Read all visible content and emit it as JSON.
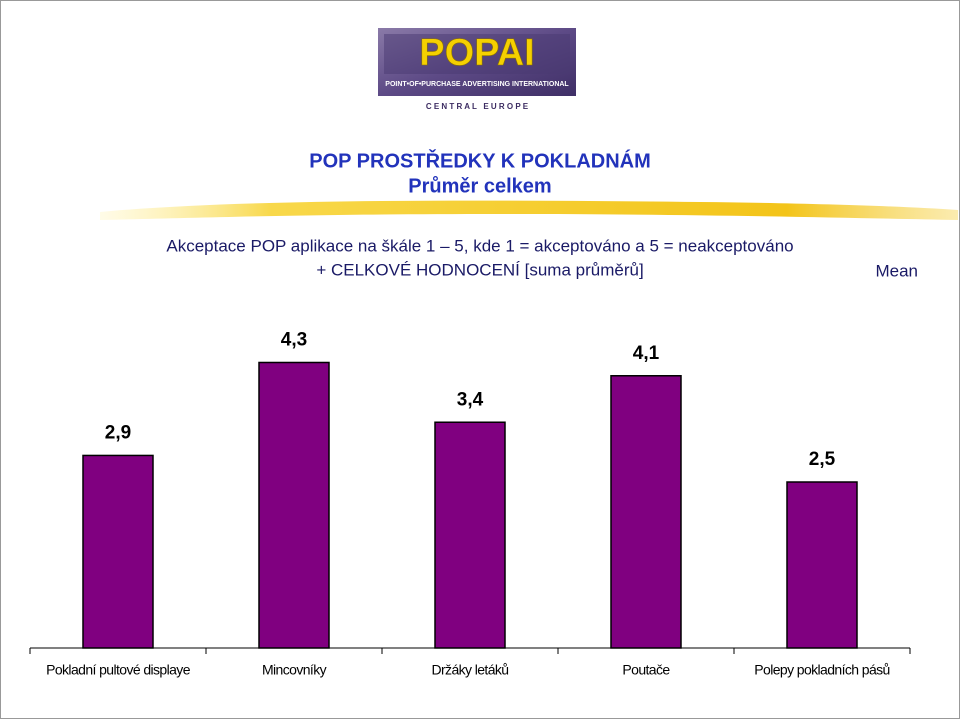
{
  "logo": {
    "name": "POPAI",
    "tagline": "POINT•OF•PURCHASE ADVERTISING INTERNATIONAL",
    "region": "C E N T R A L   E U R O P E"
  },
  "chart_data": {
    "type": "bar",
    "title": "POP PROSTŘEDKY K POKLADNÁM",
    "subtitle": "Průměr celkem",
    "description": [
      "Akceptace POP aplikace na škále 1 – 5, kde 1 = akceptováno a 5 = neakceptováno",
      "+ CELKOVÉ HODNOCENÍ [suma průměrů]"
    ],
    "categories": [
      "Pokladní pultové displaye",
      "Mincovníky",
      "Držáky letáků",
      "Poutače",
      "Polepy pokladních pásů"
    ],
    "series": [
      {
        "name": "Mean",
        "color": "#800080",
        "values": [
          2.9,
          4.3,
          3.4,
          4.1,
          2.5
        ],
        "value_labels": [
          "2,9",
          "4,3",
          "3,4",
          "4,1",
          "2,5"
        ]
      }
    ],
    "ylim": [
      0,
      5
    ]
  }
}
